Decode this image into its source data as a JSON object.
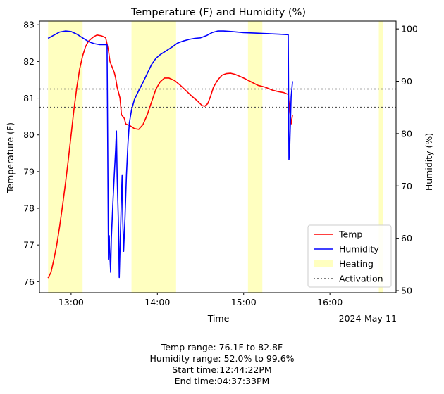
{
  "chart_data": {
    "type": "line",
    "title": "Temperature (F) and Humidity (%)",
    "xlabel": "Time",
    "date_label": "2024-May-11",
    "ylabel_left": "Temperature (F)",
    "ylabel_right": "Humidity (%)",
    "x_ticks": [
      {
        "t": "13:00",
        "label": "13:00"
      },
      {
        "t": "14:00",
        "label": "14:00"
      },
      {
        "t": "15:00",
        "label": "15:00"
      },
      {
        "t": "16:00",
        "label": "16:00"
      }
    ],
    "x_range": [
      "12:38",
      "16:46"
    ],
    "y_left_ticks": [
      76,
      77,
      78,
      79,
      80,
      81,
      82,
      83
    ],
    "y_left_range": [
      75.7,
      83.1
    ],
    "y_right_ticks": [
      50,
      60,
      70,
      80,
      90,
      100
    ],
    "y_right_range": [
      49.6,
      101.5
    ],
    "grid": false,
    "legend_position": "lower right",
    "legend": [
      {
        "label": "Temp",
        "kind": "line",
        "color": "#ff0000"
      },
      {
        "label": "Humidity",
        "kind": "line",
        "color": "#0000ff"
      },
      {
        "label": "Heating",
        "kind": "patch",
        "color": "#ffffc0"
      },
      {
        "label": "Activation",
        "kind": "dotted",
        "color": "#555555"
      }
    ],
    "heating_periods": [
      [
        "12:44",
        "13:08"
      ],
      [
        "13:42",
        "14:13"
      ],
      [
        "15:03",
        "15:13"
      ],
      [
        "16:34",
        "16:37"
      ]
    ],
    "activation_lines": [
      81.25,
      80.75
    ],
    "series": [
      {
        "name": "Temp",
        "axis": "left",
        "color": "#ff0000",
        "points": [
          [
            "12:44",
            76.1
          ],
          [
            "12:46",
            76.25
          ],
          [
            "12:48",
            76.6
          ],
          [
            "12:50",
            77.0
          ],
          [
            "12:52",
            77.5
          ],
          [
            "12:54",
            78.05
          ],
          [
            "12:56",
            78.65
          ],
          [
            "12:58",
            79.3
          ],
          [
            "13:00",
            80.0
          ],
          [
            "13:02",
            80.7
          ],
          [
            "13:04",
            81.3
          ],
          [
            "13:06",
            81.8
          ],
          [
            "13:08",
            82.15
          ],
          [
            "13:10",
            82.4
          ],
          [
            "13:12",
            82.55
          ],
          [
            "13:14",
            82.62
          ],
          [
            "13:16",
            82.68
          ],
          [
            "13:18",
            82.72
          ],
          [
            "13:21",
            82.7
          ],
          [
            "13:24",
            82.65
          ],
          [
            "13:26",
            82.3
          ],
          [
            "13:27",
            82.0
          ],
          [
            "13:28",
            81.9
          ],
          [
            "13:29",
            81.8
          ],
          [
            "13:30",
            81.7
          ],
          [
            "13:31",
            81.55
          ],
          [
            "13:32",
            81.3
          ],
          [
            "13:34",
            81.0
          ],
          [
            "13:35",
            80.55
          ],
          [
            "13:37",
            80.45
          ],
          [
            "13:38",
            80.3
          ],
          [
            "13:41",
            80.25
          ],
          [
            "13:44",
            80.17
          ],
          [
            "13:47",
            80.15
          ],
          [
            "13:50",
            80.28
          ],
          [
            "13:53",
            80.55
          ],
          [
            "13:56",
            80.9
          ],
          [
            "13:59",
            81.25
          ],
          [
            "14:02",
            81.45
          ],
          [
            "14:05",
            81.55
          ],
          [
            "14:08",
            81.55
          ],
          [
            "14:12",
            81.48
          ],
          [
            "14:16",
            81.35
          ],
          [
            "14:20",
            81.2
          ],
          [
            "14:24",
            81.05
          ],
          [
            "14:28",
            80.92
          ],
          [
            "14:31",
            80.8
          ],
          [
            "14:33",
            80.78
          ],
          [
            "14:35",
            80.85
          ],
          [
            "14:37",
            81.05
          ],
          [
            "14:39",
            81.3
          ],
          [
            "14:42",
            81.5
          ],
          [
            "14:45",
            81.63
          ],
          [
            "14:48",
            81.67
          ],
          [
            "14:51",
            81.68
          ],
          [
            "14:54",
            81.65
          ],
          [
            "14:57",
            81.6
          ],
          [
            "15:00",
            81.55
          ],
          [
            "15:05",
            81.45
          ],
          [
            "15:10",
            81.35
          ],
          [
            "15:15",
            81.3
          ],
          [
            "15:20",
            81.22
          ],
          [
            "15:24",
            81.18
          ],
          [
            "15:28",
            81.15
          ],
          [
            "15:31",
            81.1
          ],
          [
            "15:32",
            80.7
          ],
          [
            "15:33",
            80.3
          ],
          [
            "15:34",
            80.55
          ]
        ]
      },
      {
        "name": "Humidity",
        "axis": "right",
        "color": "#0000ff",
        "points": [
          [
            "12:44",
            98.2
          ],
          [
            "12:48",
            98.8
          ],
          [
            "12:52",
            99.4
          ],
          [
            "12:56",
            99.6
          ],
          [
            "13:00",
            99.5
          ],
          [
            "13:04",
            99.0
          ],
          [
            "13:08",
            98.3
          ],
          [
            "13:12",
            97.6
          ],
          [
            "13:16",
            97.2
          ],
          [
            "13:20",
            97.0
          ],
          [
            "13:24",
            97.0
          ],
          [
            "13:25",
            97.0
          ],
          [
            "13:26",
            56.0
          ],
          [
            "13:26.5",
            60.5
          ],
          [
            "13:27",
            56.5
          ],
          [
            "13:27.5",
            53.5
          ],
          [
            "13:28",
            60.0
          ],
          [
            "13:29",
            66.5
          ],
          [
            "13:30",
            72.0
          ],
          [
            "13:31",
            77.0
          ],
          [
            "13:31.5",
            80.5
          ],
          [
            "13:32",
            72.0
          ],
          [
            "13:33",
            62.0
          ],
          [
            "13:33.5",
            52.5
          ],
          [
            "13:34",
            58.0
          ],
          [
            "13:35",
            68.0
          ],
          [
            "13:35.5",
            72.0
          ],
          [
            "13:36",
            63.0
          ],
          [
            "13:36.5",
            57.5
          ],
          [
            "13:37.5",
            64.0
          ],
          [
            "13:38.5",
            72.0
          ],
          [
            "13:39.5",
            78.0
          ],
          [
            "13:40.5",
            82.0
          ],
          [
            "13:42",
            84.5
          ],
          [
            "13:44",
            86.5
          ],
          [
            "13:47",
            88.2
          ],
          [
            "13:50",
            89.8
          ],
          [
            "13:53",
            91.5
          ],
          [
            "13:56",
            93.2
          ],
          [
            "13:59",
            94.4
          ],
          [
            "14:02",
            95.1
          ],
          [
            "14:06",
            95.8
          ],
          [
            "14:10",
            96.5
          ],
          [
            "14:14",
            97.3
          ],
          [
            "14:18",
            97.7
          ],
          [
            "14:22",
            98.0
          ],
          [
            "14:26",
            98.2
          ],
          [
            "14:30",
            98.3
          ],
          [
            "14:34",
            98.7
          ],
          [
            "14:38",
            99.3
          ],
          [
            "14:42",
            99.6
          ],
          [
            "14:46",
            99.6
          ],
          [
            "14:52",
            99.5
          ],
          [
            "15:00",
            99.3
          ],
          [
            "15:08",
            99.2
          ],
          [
            "15:16",
            99.1
          ],
          [
            "15:24",
            99.0
          ],
          [
            "15:31",
            98.9
          ],
          [
            "15:31.5",
            75.0
          ],
          [
            "15:32",
            77.0
          ],
          [
            "15:33",
            87.0
          ],
          [
            "15:34",
            90.0
          ]
        ]
      }
    ]
  },
  "caption": {
    "temp_range": "Temp range: 76.1F to 82.8F",
    "humidity_range": "Humidity range: 52.0% to 99.6%",
    "start_time": "Start time:12:44:22PM",
    "end_time": "End time:04:37:33PM"
  }
}
